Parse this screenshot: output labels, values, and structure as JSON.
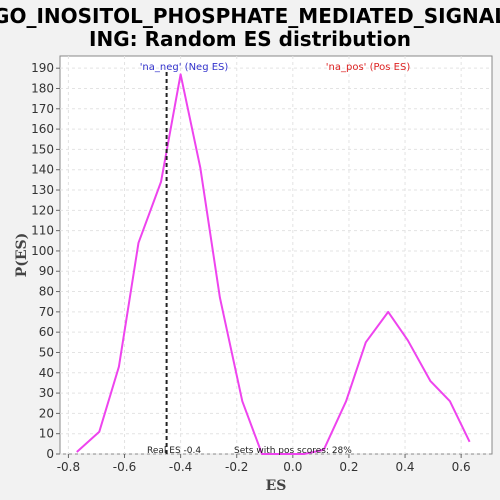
{
  "chart_data": {
    "type": "line",
    "title_line1": "GO_INOSITOL_PHOSPHATE_MEDIATED_SIGNAL",
    "title_line2": "ING: Random ES distribution",
    "xlabel": "ES",
    "ylabel": "P(ES)",
    "xlim": [
      -0.83,
      0.71
    ],
    "ylim": [
      0,
      196
    ],
    "xticks": [
      -0.8,
      -0.6,
      -0.4,
      -0.2,
      0.0,
      0.2,
      0.4,
      0.6
    ],
    "xtick_labels": [
      "-0.8",
      "-0.6",
      "-0.4",
      "-0.2",
      "0.0",
      "0.2",
      "0.4",
      "0.6"
    ],
    "yticks": [
      0,
      10,
      20,
      30,
      40,
      50,
      60,
      70,
      80,
      90,
      100,
      110,
      120,
      130,
      140,
      150,
      160,
      170,
      180,
      190
    ],
    "grid": true,
    "series": [
      {
        "color": "#ee44ee",
        "x": [
          -0.77,
          -0.69,
          -0.62,
          -0.55,
          -0.47,
          -0.4,
          -0.33,
          -0.26,
          -0.18,
          -0.11,
          -0.04,
          0.04,
          0.11,
          0.19,
          0.26,
          0.34,
          0.41,
          0.49,
          0.56,
          0.63
        ],
        "y": [
          1,
          11,
          43,
          104,
          134,
          187,
          141,
          77,
          26,
          0,
          0,
          0,
          2,
          26,
          55,
          70,
          56,
          36,
          26,
          6
        ]
      }
    ],
    "real_es": -0.45,
    "legend": {
      "neg_label": "'na_neg' (Neg ES)",
      "neg_color": "#3333cc",
      "pos_label": "'na_pos' (Pos ES)",
      "pos_color": "#dd2222"
    },
    "annotations": {
      "real_es_text": "Real ES -0.4",
      "pos_scores_text": "Sets with pos scores: 28%"
    }
  }
}
